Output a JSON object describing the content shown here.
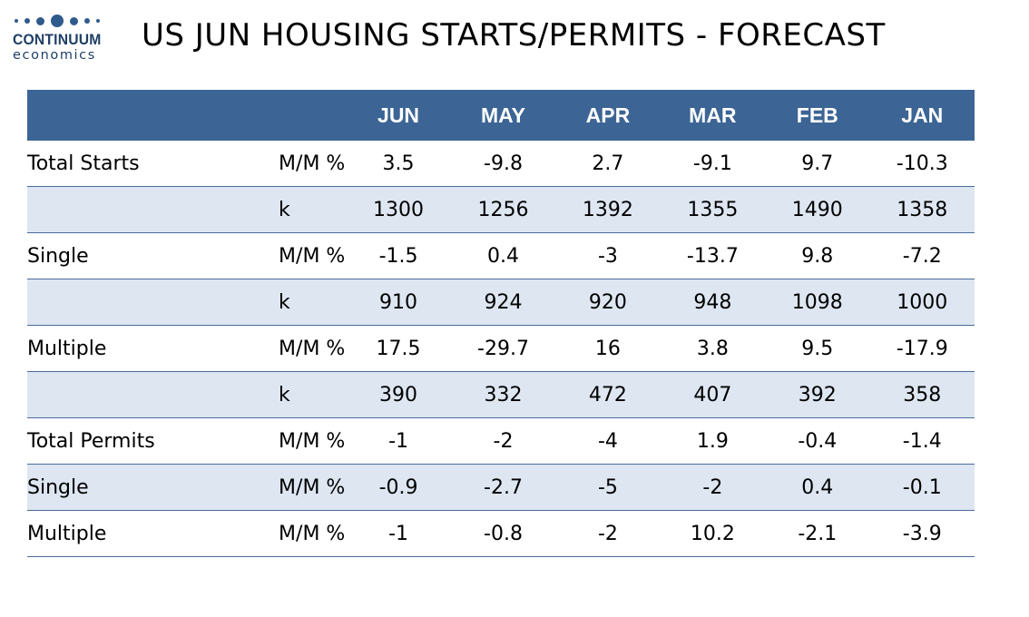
{
  "logo": {
    "main": "CONTINUUM",
    "sub": "economics"
  },
  "title": "US JUN HOUSING STARTS/PERMITS - FORECAST",
  "colors": {
    "header_bg": "#3c6595",
    "row_shade": "#dde6f1",
    "rule": "#4a6c9a",
    "logo_blue": "#1f3f66"
  },
  "table": {
    "columns": [
      "JUN",
      "MAY",
      "APR",
      "MAR",
      "FEB",
      "JAN"
    ],
    "rows": [
      {
        "label": "Total Starts",
        "unit": "M/M %",
        "values": [
          "3.5",
          "-9.8",
          "2.7",
          "-9.1",
          "9.7",
          "-10.3"
        ]
      },
      {
        "label": "",
        "unit": "k",
        "values": [
          "1300",
          "1256",
          "1392",
          "1355",
          "1490",
          "1358"
        ]
      },
      {
        "label": "Single",
        "unit": "M/M %",
        "values": [
          "-1.5",
          "0.4",
          "-3",
          "-13.7",
          "9.8",
          "-7.2"
        ]
      },
      {
        "label": "",
        "unit": "k",
        "values": [
          "910",
          "924",
          "920",
          "948",
          "1098",
          "1000"
        ]
      },
      {
        "label": "Multiple",
        "unit": "M/M %",
        "values": [
          "17.5",
          "-29.7",
          "16",
          "3.8",
          "9.5",
          "-17.9"
        ]
      },
      {
        "label": "",
        "unit": "k",
        "values": [
          "390",
          "332",
          "472",
          "407",
          "392",
          "358"
        ]
      },
      {
        "label": "Total Permits",
        "unit": "M/M %",
        "values": [
          "-1",
          "-2",
          "-4",
          "1.9",
          "-0.4",
          "-1.4"
        ]
      },
      {
        "label": "Single",
        "unit": "M/M %",
        "values": [
          "-0.9",
          "-2.7",
          "-5",
          "-2",
          "0.4",
          "-0.1"
        ]
      },
      {
        "label": "Multiple",
        "unit": "M/M %",
        "values": [
          "-1",
          "-0.8",
          "-2",
          "10.2",
          "-2.1",
          "-3.9"
        ]
      }
    ]
  }
}
